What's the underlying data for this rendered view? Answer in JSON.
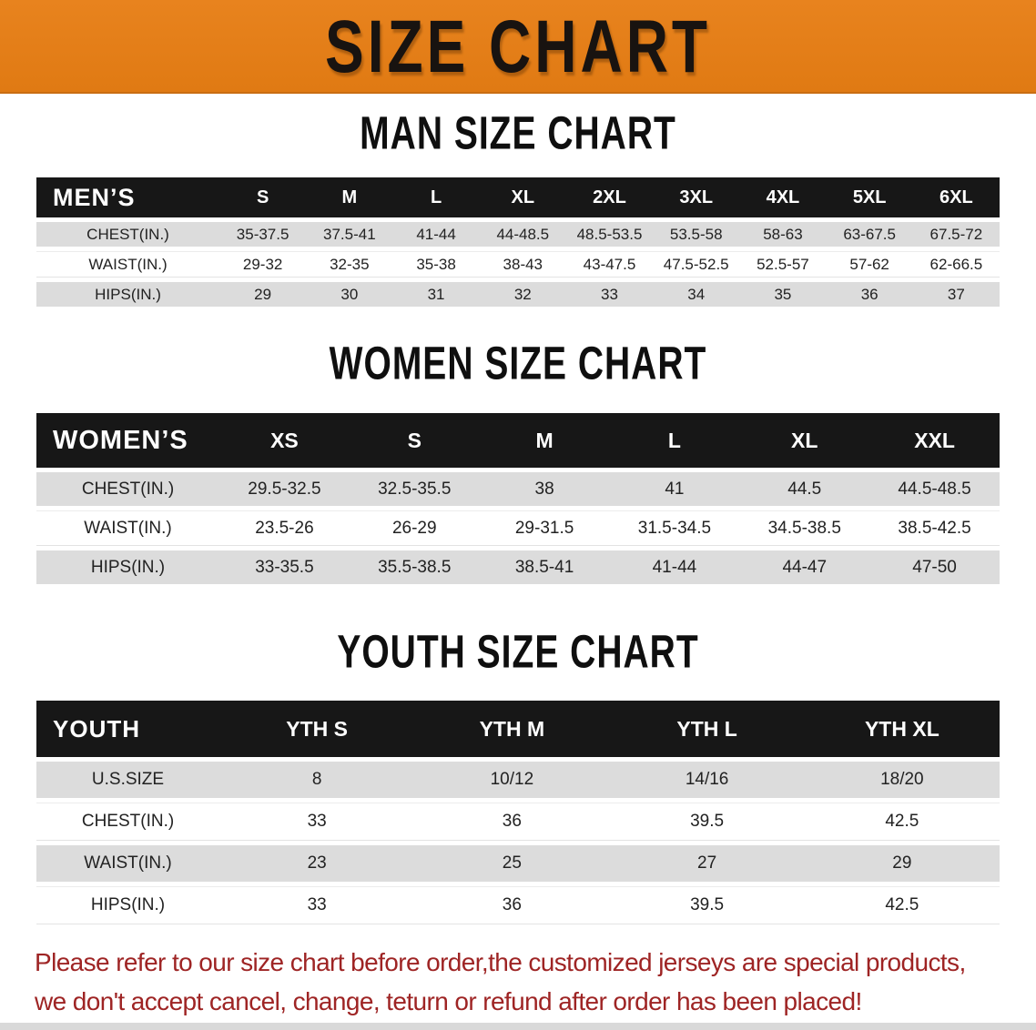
{
  "banner": {
    "title": "SIZE CHART"
  },
  "colors": {
    "banner_orange": "#e8831e",
    "header_black": "#171717",
    "row_gray": "#dcdcdc",
    "disclaimer_red": "#9e2424"
  },
  "tables": {
    "mens": {
      "section_title": "MAN SIZE CHART",
      "header": [
        "MEN’S",
        "S",
        "M",
        "L",
        "XL",
        "2XL",
        "3XL",
        "4XL",
        "5XL",
        "6XL"
      ],
      "rows": [
        [
          "CHEST(IN.)",
          "35-37.5",
          "37.5-41",
          "41-44",
          "44-48.5",
          "48.5-53.5",
          "53.5-58",
          "58-63",
          "63-67.5",
          "67.5-72"
        ],
        [
          "WAIST(IN.)",
          "29-32",
          "32-35",
          "35-38",
          "38-43",
          "43-47.5",
          "47.5-52.5",
          "52.5-57",
          "57-62",
          "62-66.5"
        ],
        [
          "HIPS(IN.)",
          "29",
          "30",
          "31",
          "32",
          "33",
          "34",
          "35",
          "36",
          "37"
        ]
      ]
    },
    "womens": {
      "section_title": "WOMEN SIZE CHART",
      "header": [
        "WOMEN’S",
        "XS",
        "S",
        "M",
        "L",
        "XL",
        "XXL"
      ],
      "rows": [
        [
          "CHEST(IN.)",
          "29.5-32.5",
          "32.5-35.5",
          "38",
          "41",
          "44.5",
          "44.5-48.5"
        ],
        [
          "WAIST(IN.)",
          "23.5-26",
          "26-29",
          "29-31.5",
          "31.5-34.5",
          "34.5-38.5",
          "38.5-42.5"
        ],
        [
          "HIPS(IN.)",
          "33-35.5",
          "35.5-38.5",
          "38.5-41",
          "41-44",
          "44-47",
          "47-50"
        ]
      ]
    },
    "youth": {
      "section_title": "YOUTH SIZE CHART",
      "header": [
        "YOUTH",
        "YTH S",
        "YTH M",
        "YTH L",
        "YTH XL"
      ],
      "rows": [
        [
          "U.S.SIZE",
          "8",
          "10/12",
          "14/16",
          "18/20"
        ],
        [
          "CHEST(IN.)",
          "33",
          "36",
          "39.5",
          "42.5"
        ],
        [
          "WAIST(IN.)",
          "23",
          "25",
          "27",
          "29"
        ],
        [
          "HIPS(IN.)",
          "33",
          "36",
          "39.5",
          "42.5"
        ]
      ]
    }
  },
  "disclaimer": {
    "line1": "Please refer to our size chart before order,the customized jerseys are special products,",
    "line2": "we don't accept cancel, change, teturn or refund after order has been placed!"
  }
}
